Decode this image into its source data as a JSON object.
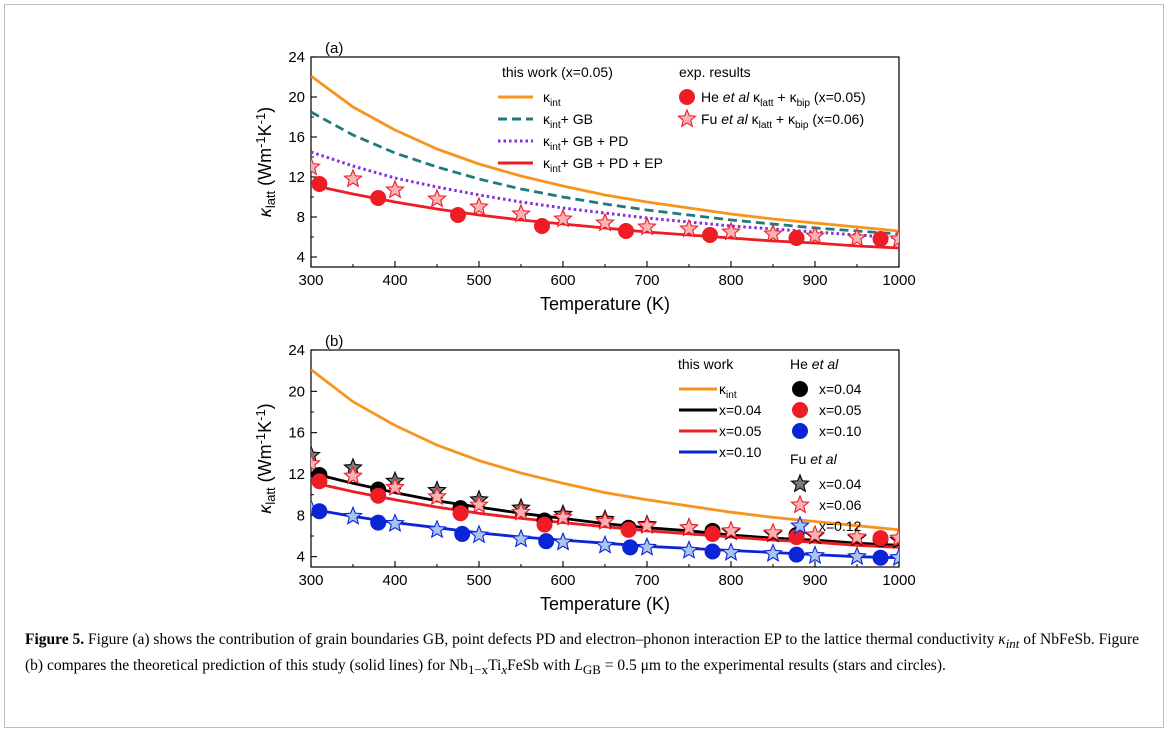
{
  "figure": {
    "caption": {
      "label": "Figure 5.",
      "part1": "Figure (a) shows the contribution of grain boundaries GB, point defects PD and electron–phonon interaction EP to the lattice thermal conductivity ",
      "kint": "κ",
      "kint_sub": "int",
      "part2": " of NbFeSb. Figure (b) compares the theoretical prediction of this study (solid lines) for Nb",
      "nb_sub": "1−x",
      "ti": "Ti",
      "ti_sub": "x",
      "part3": "FeSb with ",
      "lgb": "L",
      "lgb_sub": "GB",
      "part4": " = 0.5 μm to the experimental results (stars and circles)."
    }
  },
  "chart_data": [
    {
      "panel": "(a)",
      "type": "line",
      "xlabel": "Temperature (K)",
      "ylabel": "κlatt (Wm-1K-1)",
      "xlim": [
        300,
        1000
      ],
      "ylim": [
        3,
        24
      ],
      "xticks": [
        300,
        400,
        500,
        600,
        700,
        800,
        900,
        1000
      ],
      "yticks": [
        4,
        8,
        12,
        16,
        20,
        24
      ],
      "legend_headers": [
        "this work (x=0.05)",
        "exp. results"
      ],
      "series": [
        {
          "name": "κint",
          "color": "#f7941d",
          "style": "solid",
          "x": [
            300,
            350,
            400,
            450,
            500,
            550,
            600,
            650,
            700,
            750,
            800,
            850,
            900,
            950,
            1000
          ],
          "y": [
            22.1,
            19.0,
            16.7,
            14.8,
            13.3,
            12.1,
            11.1,
            10.2,
            9.5,
            8.9,
            8.3,
            7.8,
            7.4,
            7.0,
            6.6
          ]
        },
        {
          "name": "κint+ GB",
          "color": "#1f7a7a",
          "style": "dashed",
          "x": [
            300,
            350,
            400,
            450,
            500,
            550,
            600,
            650,
            700,
            750,
            800,
            850,
            900,
            950,
            1000
          ],
          "y": [
            18.5,
            16.2,
            14.4,
            13.0,
            11.8,
            10.8,
            10.0,
            9.3,
            8.7,
            8.2,
            7.7,
            7.3,
            6.9,
            6.6,
            6.3
          ]
        },
        {
          "name": "κint+ GB + PD",
          "color": "#8a2be2",
          "style": "dotted",
          "x": [
            300,
            350,
            400,
            450,
            500,
            550,
            600,
            650,
            700,
            750,
            800,
            850,
            900,
            950,
            1000
          ],
          "y": [
            14.5,
            13.1,
            11.9,
            11.0,
            10.2,
            9.5,
            8.9,
            8.4,
            7.9,
            7.5,
            7.1,
            6.8,
            6.5,
            6.2,
            5.9
          ]
        },
        {
          "name": "κint+ GB + PD + EP",
          "color": "#ee1c25",
          "style": "solid",
          "x": [
            300,
            350,
            400,
            450,
            500,
            550,
            600,
            650,
            700,
            750,
            800,
            850,
            900,
            950,
            1000
          ],
          "y": [
            11.2,
            10.3,
            9.5,
            8.8,
            8.2,
            7.7,
            7.3,
            6.9,
            6.5,
            6.2,
            5.9,
            5.6,
            5.4,
            5.1,
            4.9
          ]
        }
      ],
      "markers": [
        {
          "name": "He et al κlatt + κbip (x=0.05)",
          "shape": "circle",
          "fill": "#ee1c25",
          "stroke": "#ee1c25",
          "x": [
            310,
            380,
            475,
            575,
            675,
            775,
            878,
            978
          ],
          "y": [
            11.3,
            9.9,
            8.2,
            7.1,
            6.6,
            6.2,
            5.9,
            5.8
          ]
        },
        {
          "name": "Fu et al κlatt + κbip (x=0.06)",
          "shape": "star",
          "fill": "#f8b4b4",
          "stroke": "#ee1c25",
          "x": [
            300,
            350,
            400,
            450,
            500,
            550,
            600,
            650,
            700,
            750,
            800,
            850,
            900,
            950,
            1000
          ],
          "y": [
            13.0,
            11.8,
            10.7,
            9.8,
            9.0,
            8.3,
            7.8,
            7.4,
            7.0,
            6.8,
            6.5,
            6.3,
            6.1,
            5.9,
            5.8
          ]
        }
      ]
    },
    {
      "panel": "(b)",
      "type": "line",
      "xlabel": "Temperature (K)",
      "ylabel": "κlatt (Wm-1K-1)",
      "xlim": [
        300,
        1000
      ],
      "ylim": [
        3,
        24
      ],
      "xticks": [
        300,
        400,
        500,
        600,
        700,
        800,
        900,
        1000
      ],
      "yticks": [
        4,
        8,
        12,
        16,
        20,
        24
      ],
      "legend_headers": [
        "this work",
        "He et al",
        "Fu et al"
      ],
      "series": [
        {
          "name": "κint",
          "color": "#f7941d",
          "style": "solid",
          "x": [
            300,
            350,
            400,
            450,
            500,
            550,
            600,
            650,
            700,
            750,
            800,
            850,
            900,
            950,
            1000
          ],
          "y": [
            22.1,
            19.0,
            16.7,
            14.8,
            13.3,
            12.1,
            11.1,
            10.2,
            9.5,
            8.9,
            8.3,
            7.8,
            7.4,
            7.0,
            6.6
          ]
        },
        {
          "name": "x=0.04",
          "color": "#000000",
          "style": "solid",
          "x": [
            300,
            350,
            400,
            450,
            500,
            550,
            600,
            650,
            700,
            750,
            800,
            850,
            900,
            950,
            1000
          ],
          "y": [
            12.1,
            11.1,
            10.2,
            9.4,
            8.8,
            8.2,
            7.7,
            7.2,
            6.8,
            6.5,
            6.1,
            5.8,
            5.6,
            5.3,
            5.1
          ]
        },
        {
          "name": "x=0.05",
          "color": "#ee1c25",
          "style": "solid",
          "x": [
            300,
            350,
            400,
            450,
            500,
            550,
            600,
            650,
            700,
            750,
            800,
            850,
            900,
            950,
            1000
          ],
          "y": [
            11.2,
            10.3,
            9.5,
            8.8,
            8.2,
            7.7,
            7.3,
            6.9,
            6.5,
            6.2,
            5.9,
            5.6,
            5.4,
            5.1,
            4.9
          ]
        },
        {
          "name": "x=0.10",
          "color": "#0b24d6",
          "style": "solid",
          "x": [
            300,
            350,
            400,
            450,
            500,
            550,
            600,
            650,
            700,
            750,
            800,
            850,
            900,
            950,
            1000
          ],
          "y": [
            8.6,
            7.9,
            7.3,
            6.8,
            6.3,
            5.9,
            5.6,
            5.3,
            5.0,
            4.8,
            4.6,
            4.4,
            4.2,
            4.0,
            3.9
          ]
        }
      ],
      "markers": [
        {
          "name": "x=0.04",
          "group": "He et al",
          "shape": "circle",
          "fill": "#000000",
          "stroke": "#000000",
          "x": [
            310,
            380,
            478,
            578,
            678,
            778,
            878,
            978
          ],
          "y": [
            11.9,
            10.5,
            8.7,
            7.5,
            6.8,
            6.5,
            6.1,
            5.7
          ]
        },
        {
          "name": "x=0.05",
          "group": "He et al",
          "shape": "circle",
          "fill": "#ee1c25",
          "stroke": "#ee1c25",
          "x": [
            310,
            380,
            478,
            578,
            678,
            778,
            878,
            978
          ],
          "y": [
            11.3,
            9.9,
            8.2,
            7.1,
            6.6,
            6.2,
            5.9,
            5.8
          ]
        },
        {
          "name": "x=0.10",
          "group": "He et al",
          "shape": "circle",
          "fill": "#0b24d6",
          "stroke": "#0b24d6",
          "x": [
            310,
            380,
            480,
            580,
            680,
            778,
            878,
            978
          ],
          "y": [
            8.4,
            7.3,
            6.2,
            5.5,
            4.9,
            4.5,
            4.2,
            3.9
          ]
        },
        {
          "name": "x=0.04",
          "group": "Fu et al",
          "shape": "star",
          "fill": "#7a7a7a",
          "stroke": "#000000",
          "x": [
            300,
            350,
            400,
            450,
            500,
            550,
            600,
            650,
            700,
            750,
            800,
            850,
            900,
            950,
            1000
          ],
          "y": [
            13.8,
            12.6,
            11.3,
            10.4,
            9.5,
            8.7,
            8.1,
            7.6,
            7.1,
            6.8,
            6.4,
            6.2,
            6.0,
            5.8,
            5.6
          ]
        },
        {
          "name": "x=0.06",
          "group": "Fu et al",
          "shape": "star",
          "fill": "#f8b4b4",
          "stroke": "#ee1c25",
          "x": [
            300,
            350,
            400,
            450,
            500,
            550,
            600,
            650,
            700,
            750,
            800,
            850,
            900,
            950,
            1000
          ],
          "y": [
            13.0,
            11.8,
            10.7,
            9.8,
            9.0,
            8.3,
            7.8,
            7.4,
            7.0,
            6.8,
            6.5,
            6.3,
            6.1,
            5.9,
            5.8
          ]
        },
        {
          "name": "x=0.12",
          "group": "Fu et al",
          "shape": "star",
          "fill": "#a9c4ee",
          "stroke": "#0b24d6",
          "x": [
            300,
            350,
            400,
            450,
            500,
            550,
            600,
            650,
            700,
            750,
            800,
            850,
            900,
            950,
            1000
          ],
          "y": [
            8.6,
            7.9,
            7.2,
            6.6,
            6.1,
            5.7,
            5.4,
            5.1,
            4.9,
            4.6,
            4.4,
            4.3,
            4.1,
            4.0,
            3.9
          ]
        }
      ]
    }
  ]
}
